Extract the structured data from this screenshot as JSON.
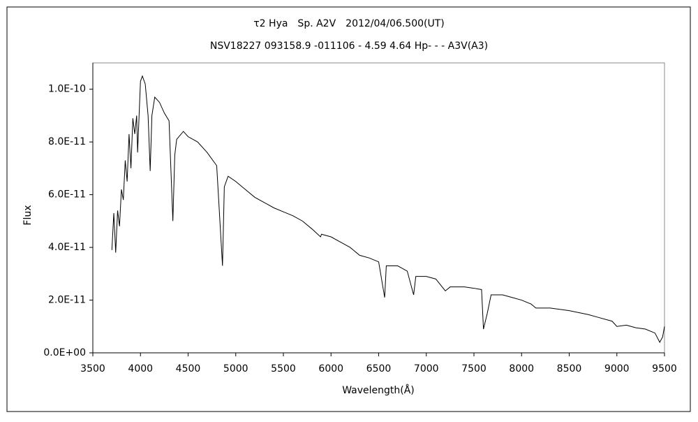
{
  "chart_data": {
    "type": "line",
    "title": "τ2 Hya　Sp. A2V　2012/04/06.500(UT)",
    "subtitle": "NSV18227 093158.9 -011106 - 4.59 4.64 Hp- - - A3V(A3)",
    "x_label": "Wavelength(Å)",
    "y_label": "Flux",
    "series": [
      {
        "name": "Flux",
        "color": "#000000",
        "x": [
          3700,
          3720,
          3740,
          3760,
          3780,
          3800,
          3820,
          3840,
          3860,
          3880,
          3900,
          3920,
          3940,
          3960,
          3970,
          4000,
          4020,
          4050,
          4080,
          4102,
          4120,
          4150,
          4200,
          4250,
          4300,
          4340,
          4360,
          4380,
          4450,
          4500,
          4600,
          4700,
          4800,
          4861,
          4880,
          4920,
          5000,
          5100,
          5200,
          5300,
          5400,
          5500,
          5600,
          5700,
          5800,
          5890,
          5900,
          6000,
          6100,
          6200,
          6300,
          6400,
          6500,
          6563,
          6580,
          6700,
          6800,
          6867,
          6890,
          7000,
          7100,
          7200,
          7250,
          7300,
          7400,
          7500,
          7580,
          7600,
          7640,
          7680,
          7800,
          7900,
          8000,
          8100,
          8150,
          8300,
          8500,
          8700,
          8800,
          8950,
          9000,
          9100,
          9200,
          9300,
          9400,
          9450,
          9480,
          9500
        ],
        "values": [
          3.9e-11,
          5.3e-11,
          3.8e-11,
          5.4e-11,
          4.8e-11,
          6.2e-11,
          5.8e-11,
          7.3e-11,
          6.5e-11,
          8.3e-11,
          7e-11,
          8.9e-11,
          8.3e-11,
          9e-11,
          7.6e-11,
          1.03e-10,
          1.05e-10,
          1.02e-10,
          9e-11,
          6.9e-11,
          9e-11,
          9.7e-11,
          9.5e-11,
          9.1e-11,
          8.8e-11,
          5e-11,
          7.5e-11,
          8.1e-11,
          8.4e-11,
          8.2e-11,
          8e-11,
          7.6e-11,
          7.1e-11,
          3.3e-11,
          6.3e-11,
          6.7e-11,
          6.5e-11,
          6.2e-11,
          5.9e-11,
          5.7e-11,
          5.5e-11,
          5.35e-11,
          5.2e-11,
          5e-11,
          4.7e-11,
          4.4e-11,
          4.5e-11,
          4.4e-11,
          4.2e-11,
          4e-11,
          3.7e-11,
          3.6e-11,
          3.45e-11,
          2.1e-11,
          3.3e-11,
          3.3e-11,
          3.1e-11,
          2.2e-11,
          2.9e-11,
          2.9e-11,
          2.8e-11,
          2.35e-11,
          2.5e-11,
          2.5e-11,
          2.5e-11,
          2.45e-11,
          2.4e-11,
          9e-12,
          1.5e-11,
          2.2e-11,
          2.2e-11,
          2.1e-11,
          2e-11,
          1.85e-11,
          1.7e-11,
          1.7e-11,
          1.6e-11,
          1.45e-11,
          1.35e-11,
          1.2e-11,
          1e-11,
          1.05e-11,
          9.5e-12,
          9e-12,
          7.5e-12,
          4e-12,
          6e-12,
          1e-11
        ]
      }
    ],
    "xlim": [
      3500,
      9500
    ],
    "xticks": [
      3500,
      4000,
      4500,
      5000,
      5500,
      6000,
      6500,
      7000,
      7500,
      8000,
      8500,
      9000,
      9500
    ],
    "ylim": [
      0,
      1.1e-10
    ],
    "yticks": [
      {
        "value": 0,
        "label": "0.0E+00"
      },
      {
        "value": 2e-11,
        "label": "2.0E-11"
      },
      {
        "value": 4e-11,
        "label": "4.0E-11"
      },
      {
        "value": 6e-11,
        "label": "6.0E-11"
      },
      {
        "value": 8e-11,
        "label": "8.0E-11"
      },
      {
        "value": 1e-10,
        "label": "1.0E-10"
      }
    ],
    "grid": false
  }
}
